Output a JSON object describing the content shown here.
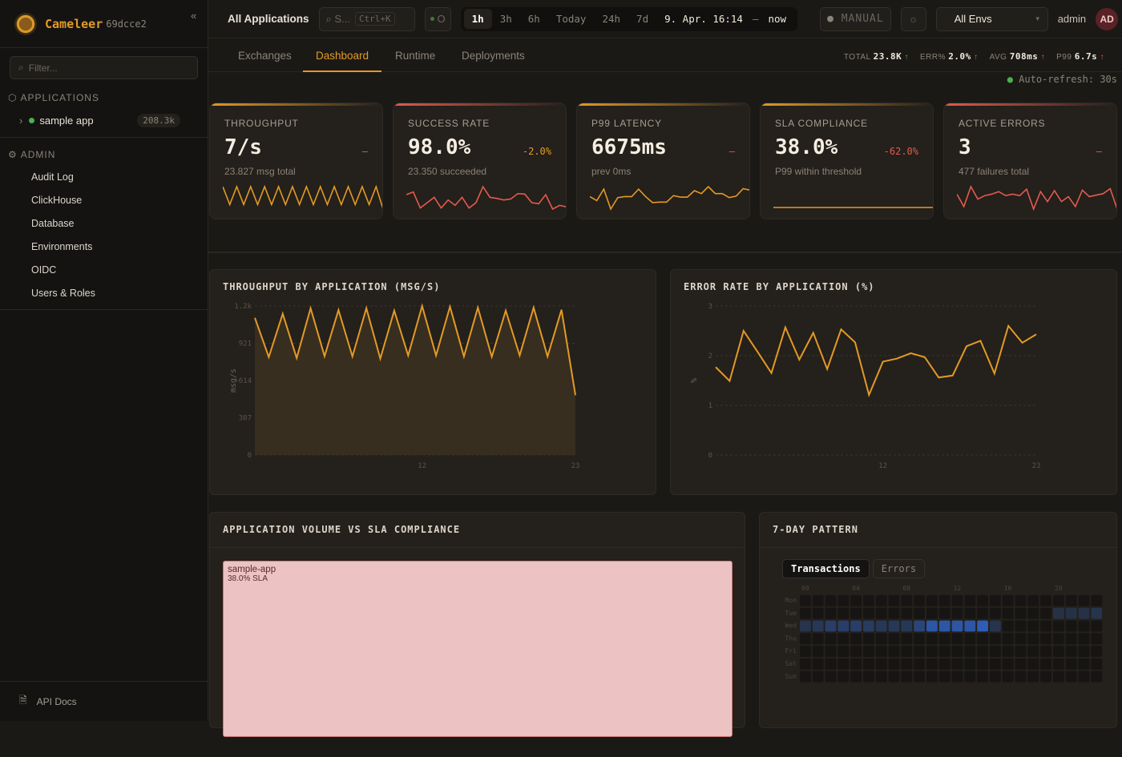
{
  "sidebar": {
    "brand": "Cameleer",
    "version": "69dcce2",
    "collapse": "«",
    "filter_placeholder": "Filter...",
    "applications_header": "APPLICATIONS",
    "apps": [
      {
        "name": "sample app",
        "count": "208.3k",
        "status_color": "#4caf50"
      }
    ],
    "admin_header": "ADMIN",
    "admin_items": [
      "Audit Log",
      "ClickHouse",
      "Database",
      "Environments",
      "OIDC",
      "Users & Roles"
    ],
    "api_docs": "API Docs"
  },
  "topbar": {
    "title": "All Applications",
    "search": "S...",
    "search_shortcut": "Ctrl+K",
    "status": "O",
    "ranges": [
      "1h",
      "3h",
      "6h",
      "Today",
      "24h",
      "7d"
    ],
    "active_range": "1h",
    "range_from": "9. Apr. 16:14",
    "range_sep": "–",
    "range_to": "now",
    "refresh_mode": "MANUAL",
    "env": "All Envs",
    "user": "admin",
    "avatar": "AD"
  },
  "tabs": [
    "Exchanges",
    "Dashboard",
    "Runtime",
    "Deployments"
  ],
  "active_tab": "Dashboard",
  "stats": [
    {
      "label": "TOTAL",
      "value": "23.8K",
      "trend": "up",
      "color": "#4caf50"
    },
    {
      "label": "ERR%",
      "value": "2.0%",
      "trend": "up",
      "color": "#e35a4f"
    },
    {
      "label": "AVG",
      "value": "708ms",
      "trend": "up",
      "color": "#e35a4f"
    },
    {
      "label": "P99",
      "value": "6.7s",
      "trend": "up",
      "color": "#e35a4f"
    }
  ],
  "auto_refresh": "Auto-refresh: 30s",
  "kpis": [
    {
      "label": "THROUGHPUT",
      "value": "7/s",
      "delta": "–",
      "sub": "23.827 msg total",
      "color": "#e39a25",
      "delta_color": "#8a8378",
      "spark": [
        5,
        1,
        5,
        1,
        5,
        1,
        5,
        1,
        5,
        1,
        5,
        1,
        5,
        1,
        5,
        1,
        5,
        1,
        5,
        1,
        5,
        1,
        5,
        0
      ]
    },
    {
      "label": "SUCCESS RATE",
      "value": "98.0%",
      "delta": "-2.0%",
      "sub": "23.350 succeeded",
      "color": "#e35a4f",
      "delta_color": "#e39a25",
      "spark": [
        3.5,
        4,
        1,
        2,
        3,
        1,
        2.5,
        1.5,
        3,
        1,
        2,
        5,
        3,
        2.8,
        2.5,
        2.7,
        3.7,
        3.6,
        2,
        1.8,
        3.5,
        0.8,
        1.5,
        1.2
      ]
    },
    {
      "label": "P99 LATENCY",
      "value": "6675ms",
      "delta": "–",
      "sub": "prev 0ms",
      "color": "#e39a25",
      "delta_color": "#e35a4f",
      "spark": [
        3,
        2.2,
        4.5,
        0.5,
        2.8,
        3,
        3,
        4.5,
        3,
        1.8,
        1.9,
        1.9,
        3.2,
        2.9,
        2.9,
        4.2,
        3.6,
        5,
        3.6,
        3.6,
        2.8,
        3.1,
        4.6,
        4.3
      ]
    },
    {
      "label": "SLA COMPLIANCE",
      "value": "38.0%",
      "delta": "-62.0%",
      "sub": "P99 within threshold",
      "color": "#e39a25",
      "delta_color": "#e35a4f",
      "spark": [
        1,
        1,
        1,
        1,
        1,
        1,
        1,
        1,
        1,
        1,
        1,
        1,
        1,
        1,
        1,
        1,
        1,
        1,
        1,
        1,
        1,
        1,
        1,
        1
      ]
    },
    {
      "label": "ACTIVE ERRORS",
      "value": "3",
      "delta": "–",
      "sub": "477 failures total",
      "color": "#e35a4f",
      "delta_color": "#e35a4f",
      "spark": [
        3.5,
        1,
        5,
        2.5,
        3.2,
        3.5,
        4,
        3.2,
        3.5,
        3.2,
        4.5,
        0.5,
        4,
        2,
        4.2,
        2,
        3,
        1,
        4.3,
        3,
        3.3,
        3.6,
        4.6,
        0.5
      ]
    }
  ],
  "chart_data": [
    {
      "type": "area",
      "title": "THROUGHPUT BY APPLICATION (MSG/S)",
      "ylabel": "msg/s",
      "xlabel": "",
      "y_ticks": [
        "0",
        "307",
        "614",
        "921",
        "1.2k"
      ],
      "ylim": [
        0,
        1228
      ],
      "x_ticks": [
        "12",
        "23"
      ],
      "x": [
        0,
        1,
        2,
        3,
        4,
        5,
        6,
        7,
        8,
        9,
        10,
        11,
        12,
        13,
        14,
        15,
        16,
        17,
        18,
        19,
        20,
        21,
        22,
        23
      ],
      "values": [
        1131,
        807,
        1164,
        799,
        1210,
        814,
        1195,
        812,
        1210,
        794,
        1190,
        820,
        1228,
        820,
        1223,
        812,
        1215,
        809,
        1190,
        820,
        1215,
        812,
        1197,
        493
      ],
      "color": "#e39a25",
      "grid": true
    },
    {
      "type": "line",
      "title": "ERROR RATE BY APPLICATION (%)",
      "ylabel": "%",
      "xlabel": "",
      "y_ticks": [
        "0",
        "1",
        "2",
        "3"
      ],
      "ylim": [
        0,
        3
      ],
      "x_ticks": [
        "12",
        "23"
      ],
      "x": [
        0,
        1,
        2,
        3,
        4,
        5,
        6,
        7,
        8,
        9,
        10,
        11,
        12,
        13,
        14,
        15,
        16,
        17,
        18,
        19,
        20,
        21,
        22,
        23
      ],
      "values": [
        1.77,
        1.49,
        2.5,
        2.08,
        1.65,
        2.57,
        1.92,
        2.46,
        1.73,
        2.53,
        2.27,
        1.21,
        1.88,
        1.94,
        2.05,
        1.97,
        1.56,
        1.6,
        2.19,
        2.3,
        1.64,
        2.6,
        2.26,
        2.43
      ],
      "color": "#e39a25",
      "grid": true
    },
    {
      "type": "heatmap",
      "title": "7-DAY PATTERN",
      "tabs": [
        "Transactions",
        "Errors"
      ],
      "active_tab": "Transactions",
      "rows": [
        "Mon",
        "Tue",
        "Wed",
        "Thu",
        "Fri",
        "Sat",
        "Sun"
      ],
      "col_ticks": [
        "00",
        "04",
        "08",
        "12",
        "16",
        "20"
      ],
      "cols": 24,
      "levels": {
        "Tue": {
          "20": 0.2,
          "21": 0.25,
          "22": 0.25,
          "23": 0.3
        },
        "Wed": {
          "0": 0.3,
          "1": 0.35,
          "2": 0.45,
          "3": 0.45,
          "4": 0.45,
          "5": 0.4,
          "6": 0.35,
          "7": 0.35,
          "8": 0.35,
          "9": 0.55,
          "10": 0.8,
          "11": 0.8,
          "12": 0.8,
          "13": 0.8,
          "14": 0.9,
          "15": 0.3
        }
      },
      "color": "#2f64c8"
    }
  ],
  "treemap": {
    "title": "APPLICATION VOLUME VS SLA COMPLIANCE",
    "items": [
      {
        "name": "sample-app",
        "sla": "38.0% SLA"
      }
    ]
  }
}
